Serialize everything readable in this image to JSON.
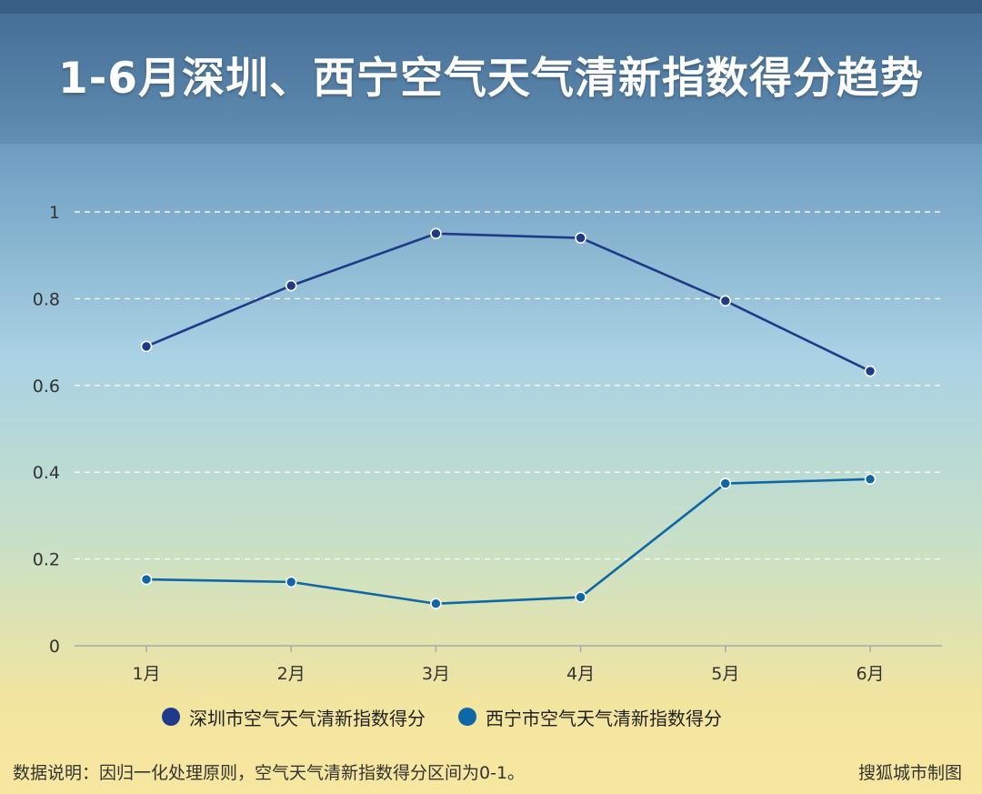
{
  "title": "1-6月深圳、西宁空气天气清新指数得分趋势",
  "footer": {
    "note": "数据说明：因归一化处理原则，空气天气清新指数得分区间为0-1。",
    "credit": "搜狐城市制图"
  },
  "colors": {
    "shenzhen": "#1f3a8a",
    "xining": "#0f67a8"
  },
  "chart_data": {
    "type": "line",
    "categories": [
      "1月",
      "2月",
      "3月",
      "4月",
      "5月",
      "6月"
    ],
    "y_ticks": [
      "0",
      "0.2",
      "0.4",
      "0.6",
      "0.8",
      "1"
    ],
    "ylim": [
      0,
      1
    ],
    "grid": true,
    "legend_position": "bottom",
    "series": [
      {
        "name": "深圳市空气天气清新指数得分",
        "values": [
          0.69,
          0.83,
          0.95,
          0.94,
          0.795,
          0.633
        ]
      },
      {
        "name": "西宁市空气天气清新指数得分",
        "values": [
          0.153,
          0.147,
          0.097,
          0.112,
          0.374,
          0.384
        ]
      }
    ]
  }
}
